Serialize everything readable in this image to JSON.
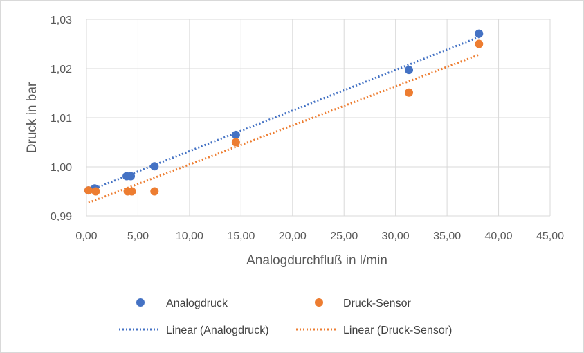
{
  "chart_data": {
    "type": "scatter",
    "xlabel": "Analogdurchfluß in l/min",
    "ylabel": "Druck in bar",
    "xlim": [
      0,
      45
    ],
    "ylim": [
      0.99,
      1.03
    ],
    "x_ticks": [
      0,
      5,
      10,
      15,
      20,
      25,
      30,
      35,
      40,
      45
    ],
    "y_ticks": [
      0.99,
      1.0,
      1.01,
      1.02,
      1.03
    ],
    "x_tick_labels": [
      "0,00",
      "5,00",
      "10,00",
      "15,00",
      "20,00",
      "25,00",
      "30,00",
      "35,00",
      "40,00",
      "45,00"
    ],
    "y_tick_labels": [
      "0,99",
      "1,00",
      "1,01",
      "1,02",
      "1,03"
    ],
    "grid": true,
    "legend_position": "bottom",
    "series": [
      {
        "name": "Analogdruck",
        "color": "#4472C4",
        "points": [
          [
            0.2,
            0.9952
          ],
          [
            0.8,
            0.9956
          ],
          [
            3.9,
            0.9981
          ],
          [
            4.3,
            0.9981
          ],
          [
            6.6,
            1.0001
          ],
          [
            14.5,
            1.0065
          ],
          [
            31.3,
            1.0197
          ],
          [
            38.1,
            1.0271
          ]
        ],
        "trendline": {
          "name": "Linear (Analogdruck)",
          "x": [
            0.2,
            38.1
          ],
          "y": [
            0.9951,
            1.0264
          ]
        }
      },
      {
        "name": "Druck-Sensor",
        "color": "#ED7D31",
        "points": [
          [
            0.2,
            0.9952
          ],
          [
            0.9,
            0.995
          ],
          [
            4.0,
            0.995
          ],
          [
            4.4,
            0.995
          ],
          [
            6.6,
            0.995
          ],
          [
            14.5,
            1.005
          ],
          [
            31.3,
            1.0151
          ],
          [
            38.1,
            1.025
          ]
        ],
        "trendline": {
          "name": "Linear (Druck-Sensor)",
          "x": [
            0.2,
            38.1
          ],
          "y": [
            0.9927,
            1.0228
          ]
        }
      }
    ]
  }
}
